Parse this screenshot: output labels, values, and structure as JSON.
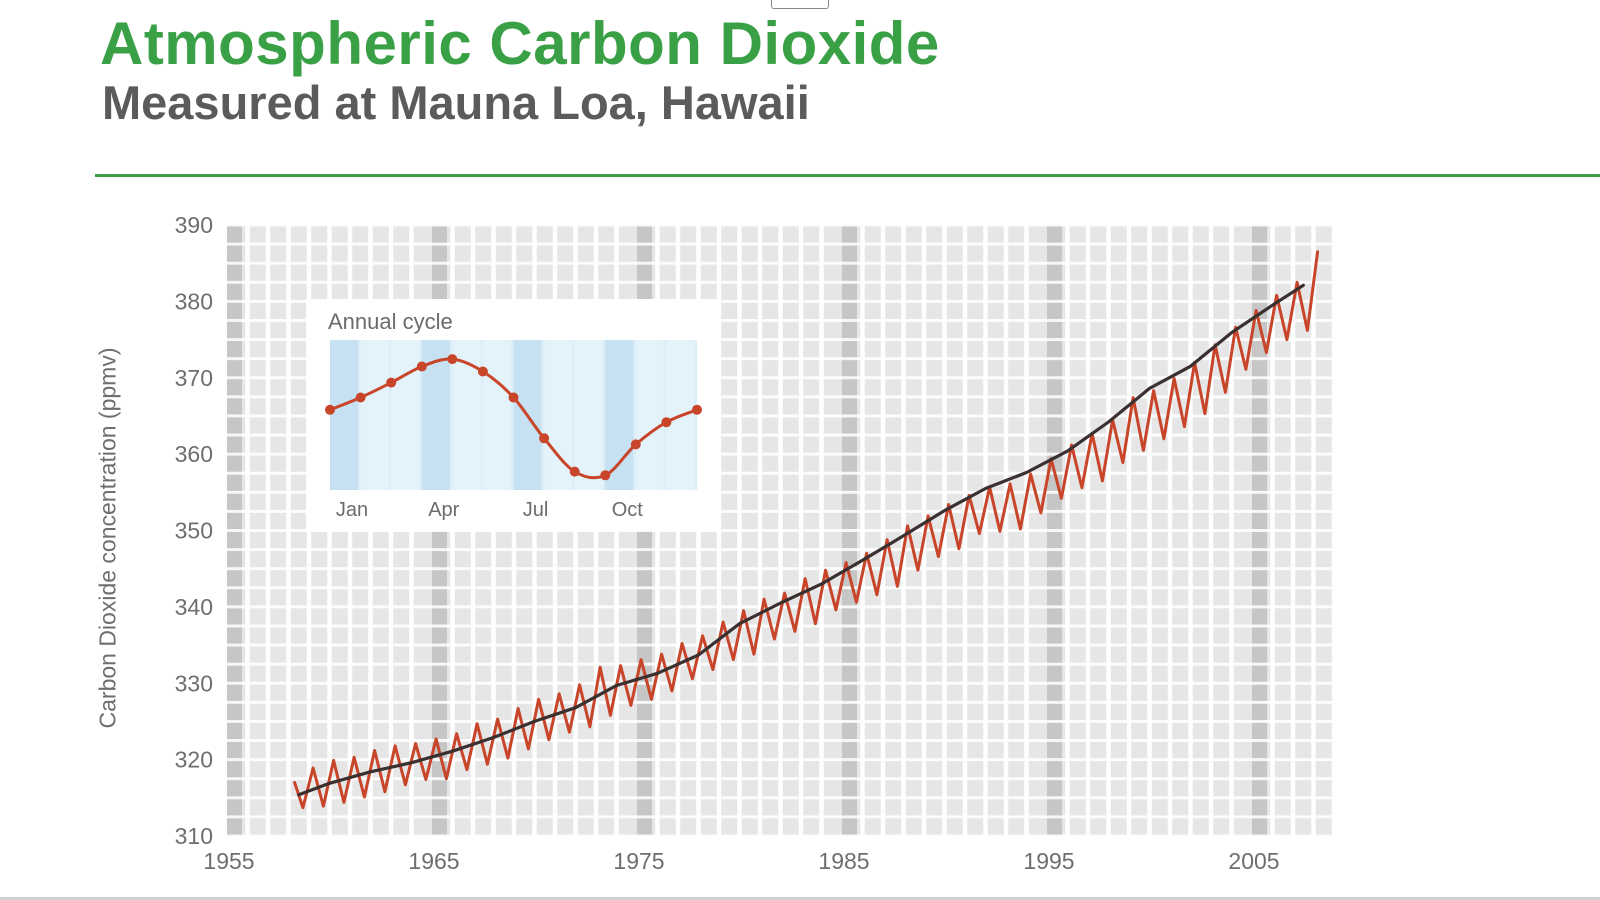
{
  "header": {
    "title": "Atmospheric Carbon Dioxide",
    "subtitle": "Measured at Mauna Loa, Hawaii"
  },
  "colors": {
    "accent": "#3aa046",
    "monthly_line": "#c8452a",
    "trend_line": "#3a3030",
    "grid_background": "#e6e6e6",
    "inset_background": "#dceef8"
  },
  "chart_data": [
    {
      "type": "line",
      "title": "Atmospheric Carbon Dioxide",
      "subtitle": "Measured at Mauna Loa, Hawaii",
      "xlabel": "",
      "ylabel": "Carbon Dioxide concentration (ppmv)",
      "xlim": [
        1955,
        2009
      ],
      "ylim": [
        310,
        390
      ],
      "x_ticks": [
        "1955",
        "1965",
        "1975",
        "1985",
        "1995",
        "2005"
      ],
      "y_ticks": [
        "310",
        "320",
        "330",
        "340",
        "350",
        "360",
        "370",
        "380",
        "390"
      ],
      "grid": true,
      "seasonal_amplitude_ppmv": 3,
      "series": [
        {
          "role": "monthly",
          "x": [
            1958.3,
            1958.7,
            1959.2,
            1959.7,
            1960.2,
            1960.7,
            1961.2,
            1961.7,
            1962.2,
            1962.7,
            1963.2,
            1963.7,
            1964.2,
            1964.7,
            1965.2,
            1965.7,
            1966.2,
            1966.7,
            1967.2,
            1967.7,
            1968.2,
            1968.7,
            1969.2,
            1969.7,
            1970.2,
            1970.7,
            1971.2,
            1971.7,
            1972.2,
            1972.7,
            1973.2,
            1973.7,
            1974.2,
            1974.7,
            1975.2,
            1975.7,
            1976.2,
            1976.7,
            1977.2,
            1977.7,
            1978.2,
            1978.7,
            1979.2,
            1979.7,
            1980.2,
            1980.7,
            1981.2,
            1981.7,
            1982.2,
            1982.7,
            1983.2,
            1983.7,
            1984.2,
            1984.7,
            1985.2,
            1985.7,
            1986.2,
            1986.7,
            1987.2,
            1987.7,
            1988.2,
            1988.7,
            1989.2,
            1989.7,
            1990.2,
            1990.7,
            1991.2,
            1991.7,
            1992.2,
            1992.7,
            1993.2,
            1993.7,
            1994.2,
            1994.7,
            1995.2,
            1995.7,
            1996.2,
            1996.7,
            1997.2,
            1997.7,
            1998.2,
            1998.7,
            1999.2,
            1999.7,
            2000.2,
            2000.7,
            2001.2,
            2001.7,
            2002.2,
            2002.7,
            2003.2,
            2003.7,
            2004.2,
            2004.7,
            2005.2,
            2005.7,
            2006.2,
            2006.7,
            2007.2,
            2007.7,
            2008.2
          ],
          "y": [
            317.0,
            313.7,
            318.9,
            313.9,
            319.9,
            314.4,
            320.3,
            315.1,
            321.2,
            315.8,
            321.8,
            316.7,
            322.1,
            317.4,
            322.7,
            317.5,
            323.4,
            318.7,
            324.7,
            319.4,
            325.3,
            320.2,
            326.7,
            321.4,
            327.9,
            322.6,
            328.6,
            323.6,
            329.8,
            324.3,
            332.1,
            325.8,
            332.3,
            327.1,
            333.1,
            327.9,
            333.8,
            329.0,
            335.2,
            330.6,
            336.2,
            331.8,
            338.0,
            333.1,
            339.5,
            333.8,
            341.0,
            335.8,
            341.8,
            336.8,
            343.7,
            337.8,
            344.8,
            339.6,
            345.8,
            340.6,
            347.0,
            341.6,
            348.8,
            342.7,
            350.6,
            344.8,
            351.9,
            346.6,
            353.4,
            347.6,
            354.6,
            349.6,
            355.7,
            349.9,
            356.1,
            350.2,
            357.4,
            352.3,
            359.4,
            354.2,
            361.2,
            355.6,
            362.7,
            356.5,
            364.5,
            358.9,
            367.4,
            360.5,
            368.3,
            362.0,
            369.9,
            363.6,
            372.0,
            365.3,
            374.3,
            368.1,
            376.6,
            371.1,
            378.8,
            373.3,
            380.8,
            375.0,
            382.5,
            376.2,
            386.5
          ]
        },
        {
          "role": "trend",
          "x": [
            1958.5,
            1960,
            1962,
            1964,
            1966,
            1968,
            1970,
            1972,
            1974,
            1976,
            1978,
            1980,
            1982,
            1984,
            1986,
            1988,
            1990,
            1992,
            1994,
            1996,
            1998,
            2000,
            2002,
            2004,
            2006,
            2007.5
          ],
          "y": [
            315.4,
            316.9,
            318.4,
            319.6,
            321.1,
            322.9,
            325.0,
            326.8,
            329.7,
            331.3,
            333.7,
            337.8,
            340.5,
            343.0,
            346.1,
            349.3,
            352.6,
            355.5,
            357.6,
            360.4,
            364.2,
            368.6,
            371.5,
            375.9,
            379.5,
            382.1
          ]
        }
      ]
    },
    {
      "type": "line",
      "title": "Annual cycle",
      "x_tick_labels": [
        "Jan",
        "Apr",
        "Jul",
        "Oct"
      ],
      "x_tick_months": [
        1,
        4,
        7,
        10
      ],
      "x": [
        1,
        2,
        3,
        4,
        5,
        6,
        7,
        8,
        9,
        10,
        11,
        12,
        13
      ],
      "values": [
        0.0,
        1.0,
        2.2,
        3.5,
        4.1,
        3.1,
        1.0,
        -2.3,
        -5.0,
        -5.3,
        -2.8,
        -1.0,
        0.0
      ]
    }
  ]
}
